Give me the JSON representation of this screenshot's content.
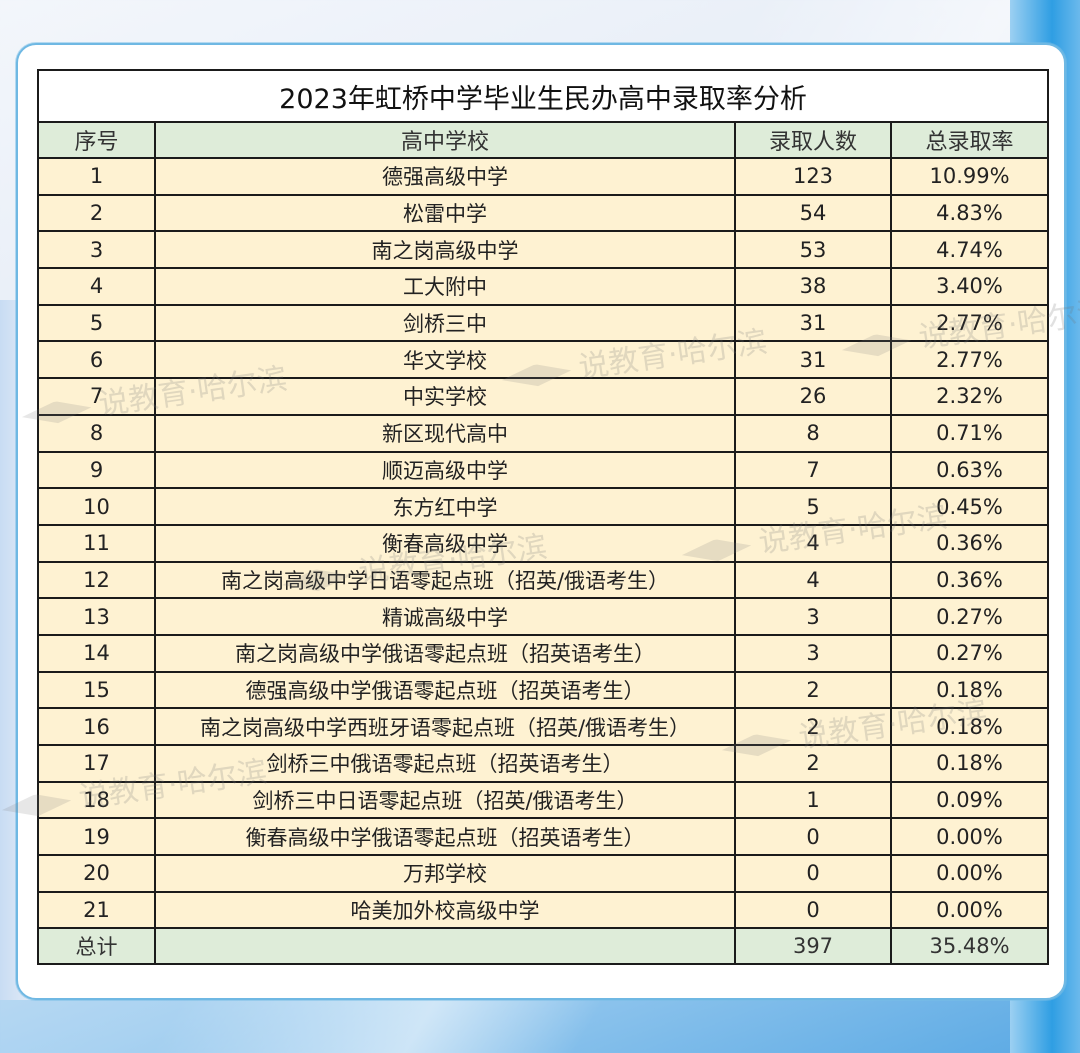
{
  "table": {
    "title": "2023年虹桥中学毕业生民办高中录取率分析",
    "headers": [
      "序号",
      "高中学校",
      "录取人数",
      "总录取率"
    ],
    "rows": [
      {
        "no": "1",
        "school": "德强高级中学",
        "count": "123",
        "rate": "10.99%"
      },
      {
        "no": "2",
        "school": "松雷中学",
        "count": "54",
        "rate": "4.83%"
      },
      {
        "no": "3",
        "school": "南之岗高级中学",
        "count": "53",
        "rate": "4.74%"
      },
      {
        "no": "4",
        "school": "工大附中",
        "count": "38",
        "rate": "3.40%"
      },
      {
        "no": "5",
        "school": "剑桥三中",
        "count": "31",
        "rate": "2.77%"
      },
      {
        "no": "6",
        "school": "华文学校",
        "count": "31",
        "rate": "2.77%"
      },
      {
        "no": "7",
        "school": "中实学校",
        "count": "26",
        "rate": "2.32%"
      },
      {
        "no": "8",
        "school": "新区现代高中",
        "count": "8",
        "rate": "0.71%"
      },
      {
        "no": "9",
        "school": "顺迈高级中学",
        "count": "7",
        "rate": "0.63%"
      },
      {
        "no": "10",
        "school": "东方红中学",
        "count": "5",
        "rate": "0.45%"
      },
      {
        "no": "11",
        "school": "衡春高级中学",
        "count": "4",
        "rate": "0.36%"
      },
      {
        "no": "12",
        "school": "南之岗高级中学日语零起点班（招英/俄语考生）",
        "count": "4",
        "rate": "0.36%"
      },
      {
        "no": "13",
        "school": "精诚高级中学",
        "count": "3",
        "rate": "0.27%"
      },
      {
        "no": "14",
        "school": "南之岗高级中学俄语零起点班（招英语考生）",
        "count": "3",
        "rate": "0.27%"
      },
      {
        "no": "15",
        "school": "德强高级中学俄语零起点班（招英语考生）",
        "count": "2",
        "rate": "0.18%"
      },
      {
        "no": "16",
        "school": "南之岗高级中学西班牙语零起点班（招英/俄语考生）",
        "count": "2",
        "rate": "0.18%"
      },
      {
        "no": "17",
        "school": "剑桥三中俄语零起点班（招英语考生）",
        "count": "2",
        "rate": "0.18%"
      },
      {
        "no": "18",
        "school": "剑桥三中日语零起点班（招英/俄语考生）",
        "count": "1",
        "rate": "0.09%"
      },
      {
        "no": "19",
        "school": "衡春高级中学俄语零起点班（招英语考生）",
        "count": "0",
        "rate": "0.00%"
      },
      {
        "no": "20",
        "school": "万邦学校",
        "count": "0",
        "rate": "0.00%"
      },
      {
        "no": "21",
        "school": "哈美加外校高级中学",
        "count": "0",
        "rate": "0.00%"
      }
    ],
    "total": {
      "label": "总计",
      "school": "",
      "count": "397",
      "rate": "35.48%"
    }
  },
  "watermark": {
    "text": "说教育·哈尔滨"
  },
  "colors": {
    "header_bg": "#deecd9",
    "row_bg": "#fef2d2",
    "card_border": "#6fb8e3",
    "grid": "#1b1b1b"
  }
}
